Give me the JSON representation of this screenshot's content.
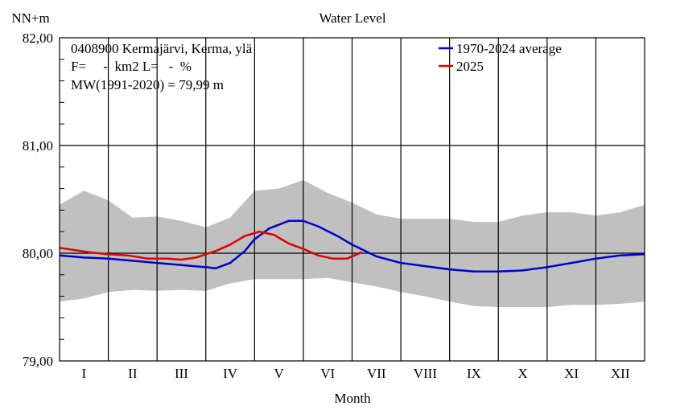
{
  "chart_data": {
    "type": "line",
    "title": "Water Level",
    "ylabel": "NN+m",
    "xlabel": "Month",
    "ylim": [
      79.0,
      82.0
    ],
    "yticks": [
      79.0,
      80.0,
      81.0,
      82.0
    ],
    "ytick_labels": [
      "79,00",
      "80,00",
      "81,00",
      "82,00"
    ],
    "categories": [
      "I",
      "II",
      "III",
      "IV",
      "V",
      "VI",
      "VII",
      "VIII",
      "IX",
      "X",
      "XI",
      "XII"
    ],
    "info_lines": [
      "0408900 Kermajärvi, Kerma, ylä",
      "F=     -  km2 L=   -  %",
      "MW(1991-2020) = 79,99 m"
    ],
    "reference_level": 80.0,
    "legend_position": "top-right",
    "band": {
      "color": "#c0c0c0",
      "x": [
        0,
        0.5,
        1,
        1.5,
        2,
        2.5,
        3,
        3.5,
        4,
        4.5,
        5,
        5.5,
        6,
        6.5,
        7,
        7.5,
        8,
        8.5,
        9,
        9.5,
        10,
        10.5,
        11,
        11.5,
        12
      ],
      "upper": [
        80.45,
        80.58,
        80.49,
        80.33,
        80.34,
        80.3,
        80.24,
        80.33,
        80.58,
        80.6,
        80.68,
        80.56,
        80.47,
        80.36,
        80.32,
        80.32,
        80.32,
        80.29,
        80.29,
        80.35,
        80.38,
        80.38,
        80.35,
        80.38,
        80.45
      ],
      "lower": [
        79.55,
        79.58,
        79.64,
        79.66,
        79.65,
        79.66,
        79.65,
        79.72,
        79.76,
        79.76,
        79.76,
        79.77,
        79.73,
        79.69,
        79.64,
        79.6,
        79.55,
        79.51,
        79.5,
        79.5,
        79.5,
        79.52,
        79.52,
        79.53,
        79.55
      ]
    },
    "series": [
      {
        "name": "1970-2024 average",
        "color": "#0000cc",
        "x": [
          0,
          0.5,
          1,
          1.5,
          2,
          2.5,
          3,
          3.2,
          3.5,
          3.8,
          4,
          4.3,
          4.7,
          5,
          5.3,
          5.7,
          6,
          6.5,
          7,
          7.5,
          8,
          8.5,
          9,
          9.5,
          10,
          10.5,
          11,
          11.5,
          12
        ],
        "values": [
          79.98,
          79.96,
          79.95,
          79.93,
          79.91,
          79.89,
          79.87,
          79.86,
          79.91,
          80.02,
          80.13,
          80.23,
          80.3,
          80.3,
          80.25,
          80.16,
          80.08,
          79.97,
          79.91,
          79.88,
          79.85,
          79.83,
          79.83,
          79.84,
          79.87,
          79.91,
          79.95,
          79.98,
          79.99
        ]
      },
      {
        "name": "2025",
        "color": "#dd0000",
        "x": [
          0,
          0.3,
          0.6,
          1,
          1.4,
          1.8,
          2.2,
          2.5,
          2.8,
          3.2,
          3.5,
          3.8,
          4.1,
          4.4,
          4.7,
          5,
          5.3,
          5.6,
          5.9,
          6.2
        ],
        "values": [
          80.05,
          80.03,
          80.01,
          79.99,
          79.98,
          79.95,
          79.95,
          79.94,
          79.96,
          80.02,
          80.08,
          80.16,
          80.2,
          80.17,
          80.09,
          80.04,
          79.98,
          79.95,
          79.95,
          80.01
        ]
      }
    ]
  }
}
